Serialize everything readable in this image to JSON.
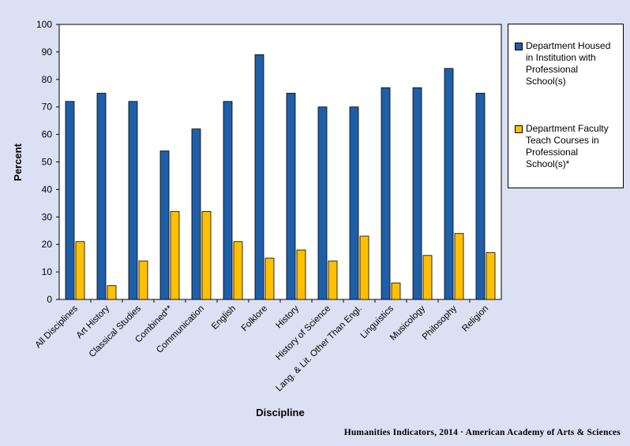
{
  "chart_data": {
    "type": "bar",
    "title": "",
    "xlabel": "Discipline",
    "ylabel": "Percent",
    "ylim": [
      0,
      100
    ],
    "yticks": [
      0,
      10,
      20,
      30,
      40,
      50,
      60,
      70,
      80,
      90,
      100
    ],
    "grid": false,
    "legend_position": "right",
    "categories": [
      "All Disciplines",
      "Art History",
      "Classical Studies",
      "Combined**",
      "Communication",
      "English",
      "Folklore",
      "History",
      "History of Science",
      "Lang. & Lit. Other Than Engl.",
      "Linguistics",
      "Musicology",
      "Philosophy",
      "Religion"
    ],
    "series": [
      {
        "name": "Department Housed in Institution with Professional School(s)",
        "color": "#1f5fa8",
        "values": [
          72,
          75,
          72,
          54,
          62,
          72,
          89,
          75,
          70,
          70,
          77,
          77,
          84,
          75
        ]
      },
      {
        "name": "Department Faculty Teach Courses in Professional School(s)*",
        "color": "#ffc000",
        "values": [
          21,
          5,
          14,
          32,
          32,
          21,
          15,
          18,
          14,
          23,
          6,
          16,
          24,
          17
        ]
      }
    ]
  },
  "legend": {
    "items": [
      {
        "label_lines": [
          "Department Housed",
          "in Institution with",
          "Professional",
          "School(s)"
        ]
      },
      {
        "label_lines": [
          "Department Faculty",
          "Teach Courses in",
          "Professional",
          "School(s)*"
        ]
      }
    ]
  },
  "source": "Humanities Indicators, 2014 · American Academy of Arts & Sciences"
}
